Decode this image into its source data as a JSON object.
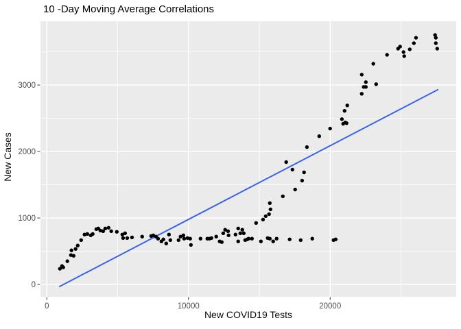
{
  "figure": {
    "background": "#FFFFFF",
    "panel_background": "#EBEBEB",
    "gridline_color": "#FFFFFF",
    "point_color": "#000000",
    "tick_color": "#333333",
    "axis_text_color": "#4D4D4D"
  },
  "chart_data": {
    "type": "scatter",
    "title": "10 -Day Moving Average Correlations",
    "xlabel": "New COVID19 Tests",
    "ylabel": "New Cases",
    "legend": "none",
    "grid": "white major+minor gridlines on gray panel",
    "x_ticks": [
      0,
      10000,
      20000
    ],
    "x_tick_labels": [
      "0",
      "10000",
      "20000"
    ],
    "x_minor_ticks": [
      5000,
      15000,
      25000
    ],
    "y_ticks": [
      0,
      1000,
      2000,
      3000
    ],
    "y_tick_labels": [
      "0",
      "1000",
      "2000",
      "3000"
    ],
    "y_minor_ticks": [
      500,
      1500,
      2500,
      3500
    ],
    "xlim": [
      -450,
      28900
    ],
    "ylim": [
      -185,
      3960
    ],
    "trend_line": {
      "type": "linear",
      "color": "#3A63E8",
      "width": 2,
      "x1": 900,
      "y1": -30,
      "x2": 27600,
      "y2": 2930
    },
    "points": [
      [
        920,
        237
      ],
      [
        1070,
        278
      ],
      [
        1160,
        257
      ],
      [
        1450,
        350
      ],
      [
        1700,
        442
      ],
      [
        1890,
        432
      ],
      [
        1740,
        514
      ],
      [
        2030,
        535
      ],
      [
        2180,
        586
      ],
      [
        2420,
        668
      ],
      [
        2660,
        751
      ],
      [
        2860,
        761
      ],
      [
        3100,
        740
      ],
      [
        3240,
        761
      ],
      [
        3490,
        833
      ],
      [
        3630,
        843
      ],
      [
        3780,
        812
      ],
      [
        3970,
        802
      ],
      [
        4120,
        843
      ],
      [
        4360,
        853
      ],
      [
        4550,
        802
      ],
      [
        4940,
        792
      ],
      [
        5330,
        751
      ],
      [
        5380,
        699
      ],
      [
        5520,
        771
      ],
      [
        5670,
        699
      ],
      [
        6010,
        709
      ],
      [
        6730,
        720
      ],
      [
        7360,
        730
      ],
      [
        7510,
        740
      ],
      [
        7700,
        720
      ],
      [
        7850,
        689
      ],
      [
        8090,
        648
      ],
      [
        8230,
        679
      ],
      [
        8430,
        617
      ],
      [
        8620,
        751
      ],
      [
        8720,
        668
      ],
      [
        9300,
        668
      ],
      [
        9440,
        720
      ],
      [
        9640,
        740
      ],
      [
        9690,
        689
      ],
      [
        9930,
        699
      ],
      [
        10120,
        689
      ],
      [
        10170,
        596
      ],
      [
        10850,
        689
      ],
      [
        11330,
        689
      ],
      [
        11480,
        689
      ],
      [
        11620,
        699
      ],
      [
        11960,
        720
      ],
      [
        12200,
        648
      ],
      [
        12350,
        638
      ],
      [
        12450,
        771
      ],
      [
        12590,
        823
      ],
      [
        12790,
        802
      ],
      [
        12830,
        740
      ],
      [
        13320,
        751
      ],
      [
        13510,
        843
      ],
      [
        13660,
        771
      ],
      [
        13800,
        823
      ],
      [
        13510,
        648
      ],
      [
        13900,
        771
      ],
      [
        14000,
        668
      ],
      [
        14140,
        679
      ],
      [
        14240,
        689
      ],
      [
        14480,
        689
      ],
      [
        14770,
        925
      ],
      [
        15110,
        648
      ],
      [
        15260,
        977
      ],
      [
        15450,
        1028
      ],
      [
        15690,
        1059
      ],
      [
        15590,
        699
      ],
      [
        15740,
        689
      ],
      [
        15980,
        648
      ],
      [
        16220,
        689
      ],
      [
        17140,
        679
      ],
      [
        17920,
        668
      ],
      [
        18740,
        689
      ],
      [
        20240,
        668
      ],
      [
        20390,
        679
      ],
      [
        15740,
        1224
      ],
      [
        15790,
        1131
      ],
      [
        16660,
        1327
      ],
      [
        17530,
        1429
      ],
      [
        18020,
        1563
      ],
      [
        18160,
        1686
      ],
      [
        17340,
        1728
      ],
      [
        16900,
        1841
      ],
      [
        18360,
        2067
      ],
      [
        19230,
        2231
      ],
      [
        20000,
        2345
      ],
      [
        20830,
        2488
      ],
      [
        20920,
        2417
      ],
      [
        21070,
        2437
      ],
      [
        21160,
        2427
      ],
      [
        21020,
        2612
      ],
      [
        21210,
        2694
      ],
      [
        22230,
        2869
      ],
      [
        22370,
        2972
      ],
      [
        22520,
        2972
      ],
      [
        22520,
        3044
      ],
      [
        22230,
        3157
      ],
      [
        23050,
        3321
      ],
      [
        23250,
        3013
      ],
      [
        24020,
        3455
      ],
      [
        24800,
        3548
      ],
      [
        24940,
        3578
      ],
      [
        25180,
        3496
      ],
      [
        25230,
        3435
      ],
      [
        25620,
        3537
      ],
      [
        25910,
        3630
      ],
      [
        26060,
        3712
      ],
      [
        27410,
        3753
      ],
      [
        27460,
        3712
      ],
      [
        27460,
        3630
      ],
      [
        27560,
        3548
      ]
    ]
  }
}
